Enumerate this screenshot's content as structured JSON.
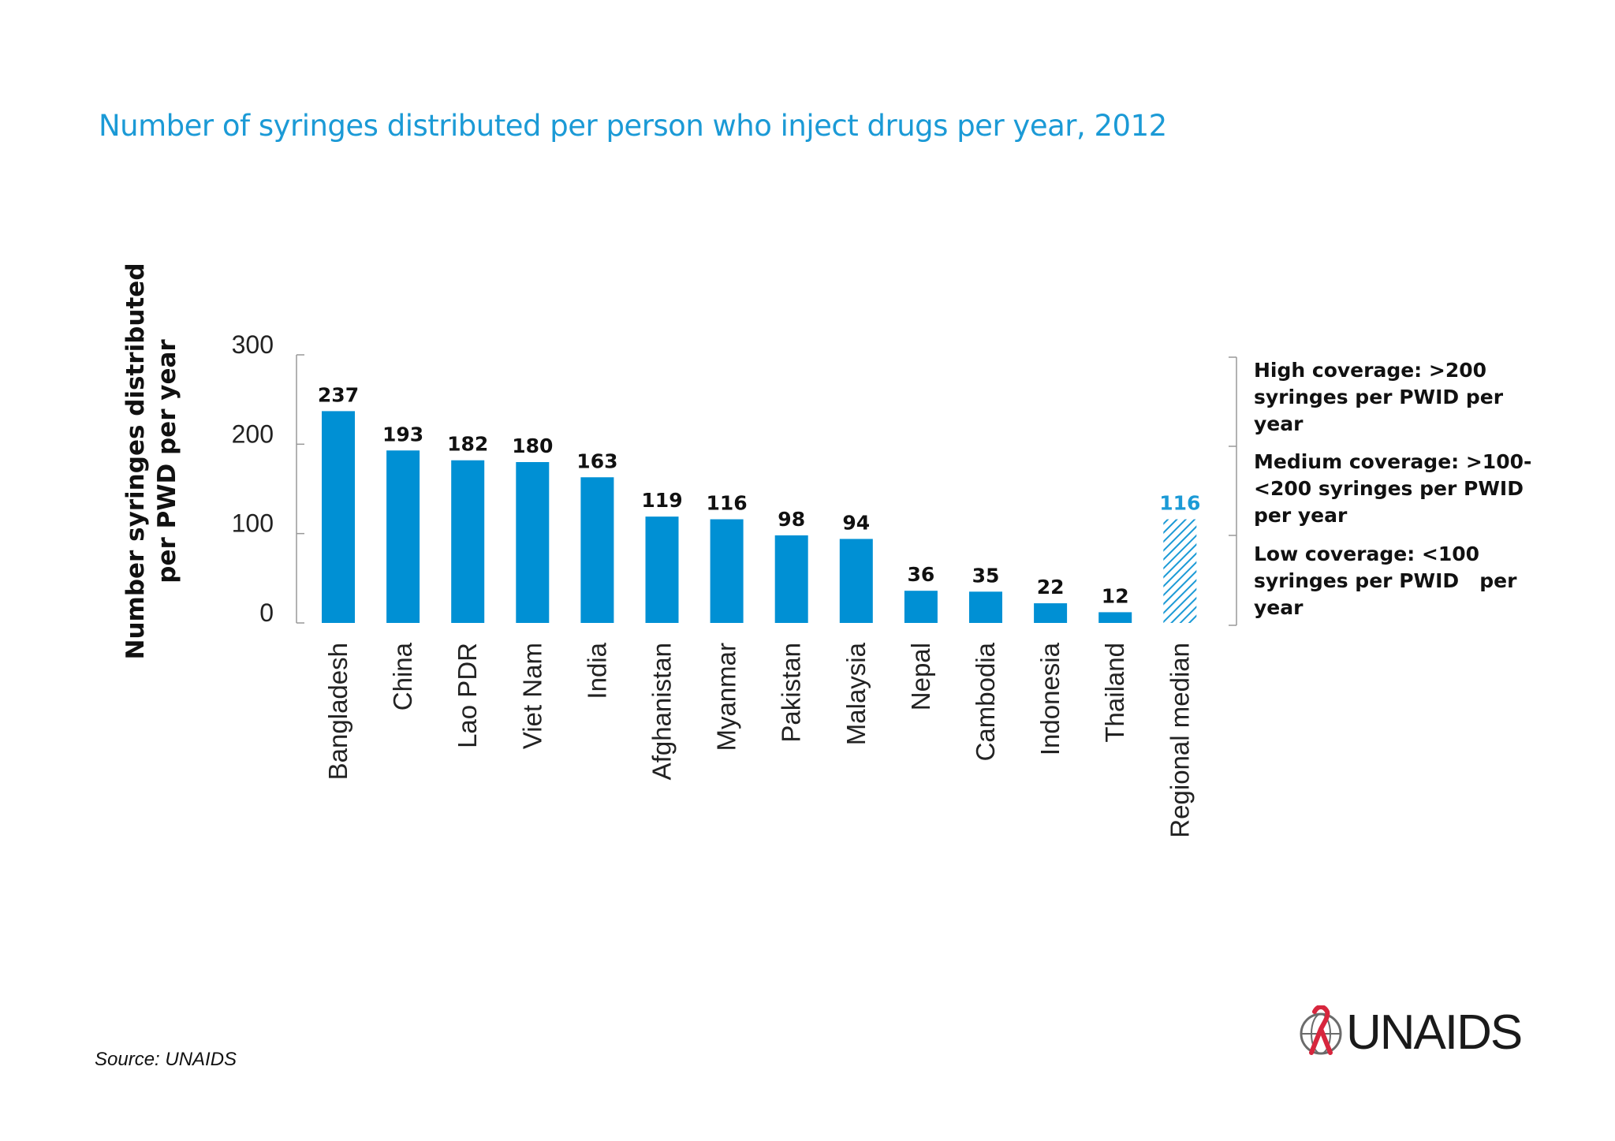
{
  "chart_data": {
    "type": "bar",
    "title": "Number of syringes distributed per person who inject drugs per year, 2012",
    "ylabel": [
      "Number syringes distributed",
      "per PWD per year"
    ],
    "ylim": [
      0,
      300
    ],
    "yticks": [
      0,
      100,
      200,
      300
    ],
    "categories": [
      "Bangladesh",
      "China",
      "Lao PDR",
      "Viet Nam",
      "India",
      "Afghanistan",
      "Myanmar",
      "Pakistan",
      "Malaysia",
      "Nepal",
      "Cambodia",
      "Indonesia",
      "Thailand",
      "Regional median"
    ],
    "values": [
      237,
      193,
      182,
      180,
      163,
      119,
      116,
      98,
      94,
      36,
      35,
      22,
      12,
      116
    ],
    "bar_color": "#0090d4",
    "median_bar_style": "hatched",
    "legend": [
      [
        "High coverage: >200",
        "syringes per PWID per",
        "year"
      ],
      [
        "Medium coverage: >100-",
        "<200 syringes per PWID",
        "per year"
      ],
      [
        "Low coverage: <100",
        "syringes per PWID   per",
        "year"
      ]
    ],
    "grid": false
  },
  "source": "Source: UNAIDS",
  "logo": {
    "text": "UNAIDS",
    "icon": "ribbon-globe-icon",
    "accent": "#d7263d"
  }
}
